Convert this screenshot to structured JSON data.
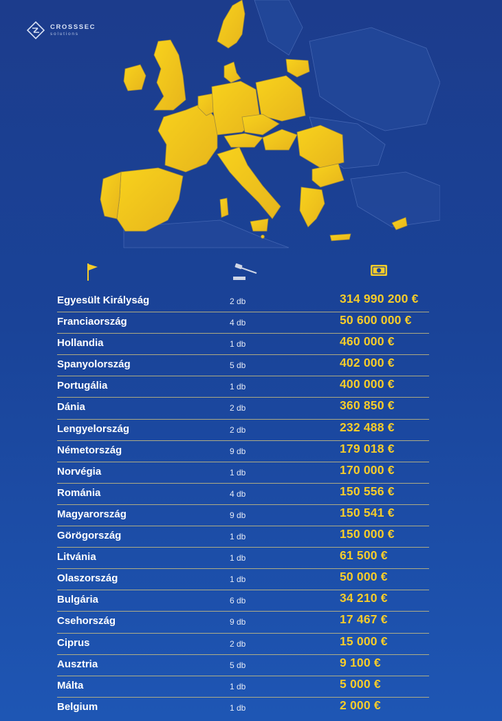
{
  "brand": {
    "name": "CROSSSEC",
    "tagline": "solutions"
  },
  "header": {
    "country_icon": "flag-icon",
    "count_icon": "gavel-icon",
    "amount_icon": "money-icon"
  },
  "colors": {
    "background": "#1a4398",
    "highlight": "#f6cc2a",
    "map_fill": "#f2c21a",
    "divider": "#e2cc78"
  },
  "rows": [
    {
      "country": "Egyesült Királyság",
      "count": "2 db",
      "amount": "314 990 200 €"
    },
    {
      "country": "Franciaország",
      "count": "4 db",
      "amount": "50 600 000 €"
    },
    {
      "country": "Hollandia",
      "count": "1 db",
      "amount": "460 000 €"
    },
    {
      "country": "Spanyolország",
      "count": "5 db",
      "amount": "402 000 €"
    },
    {
      "country": "Portugália",
      "count": "1 db",
      "amount": "400 000 €"
    },
    {
      "country": "Dánia",
      "count": "2 db",
      "amount": "360 850 €"
    },
    {
      "country": "Lengyelország",
      "count": "2 db",
      "amount": "232 488 €"
    },
    {
      "country": "Németország",
      "count": "9 db",
      "amount": "179 018 €"
    },
    {
      "country": "Norvégia",
      "count": "1 db",
      "amount": "170 000 €"
    },
    {
      "country": "Románia",
      "count": "4 db",
      "amount": "150 556 €"
    },
    {
      "country": "Magyarország",
      "count": "9 db",
      "amount": "150 541 €"
    },
    {
      "country": "Görögország",
      "count": "1 db",
      "amount": "150 000 €"
    },
    {
      "country": "Litvánia",
      "count": "1 db",
      "amount": "61 500 €"
    },
    {
      "country": "Olaszország",
      "count": "1 db",
      "amount": "50 000 €"
    },
    {
      "country": "Bulgária",
      "count": "6 db",
      "amount": "34 210 €"
    },
    {
      "country": "Csehország",
      "count": "9 db",
      "amount": "17 467 €"
    },
    {
      "country": "Ciprus",
      "count": "2 db",
      "amount": "15 000 €"
    },
    {
      "country": "Ausztria",
      "count": "5 db",
      "amount": "9 100 €"
    },
    {
      "country": "Málta",
      "count": "1 db",
      "amount": "5 000 €"
    },
    {
      "country": "Belgium",
      "count": "1 db",
      "amount": "2 000 €"
    }
  ]
}
